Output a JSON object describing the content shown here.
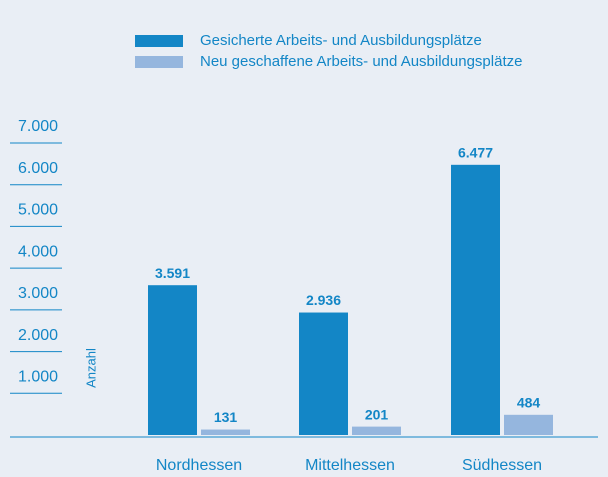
{
  "chart_data": {
    "type": "bar",
    "categories": [
      "Nordhessen",
      "Mittelhessen",
      "Südhessen"
    ],
    "series": [
      {
        "name": "Gesicherte Arbeits- und Ausbildungsplätze",
        "color": "#1386c6",
        "values": [
          3591,
          2936,
          6477
        ],
        "value_labels": [
          "3.591",
          "2.936",
          "6.477"
        ]
      },
      {
        "name": "Neu geschaffene Arbeits- und Ausbildungsplätze",
        "color": "#95b6de",
        "values": [
          131,
          201,
          484
        ]
      }
    ],
    "y_axis_label": "Anzahl",
    "ylim": [
      0,
      7000
    ],
    "yticks": [
      {
        "value": 1000,
        "label": "1.000"
      },
      {
        "value": 2000,
        "label": "2.000"
      },
      {
        "value": 3000,
        "label": "3.000"
      },
      {
        "value": 4000,
        "label": "4.000"
      },
      {
        "value": 5000,
        "label": "5.000"
      },
      {
        "value": 6000,
        "label": "6.000"
      },
      {
        "value": 7000,
        "label": "7.000"
      }
    ],
    "legend": "top"
  }
}
